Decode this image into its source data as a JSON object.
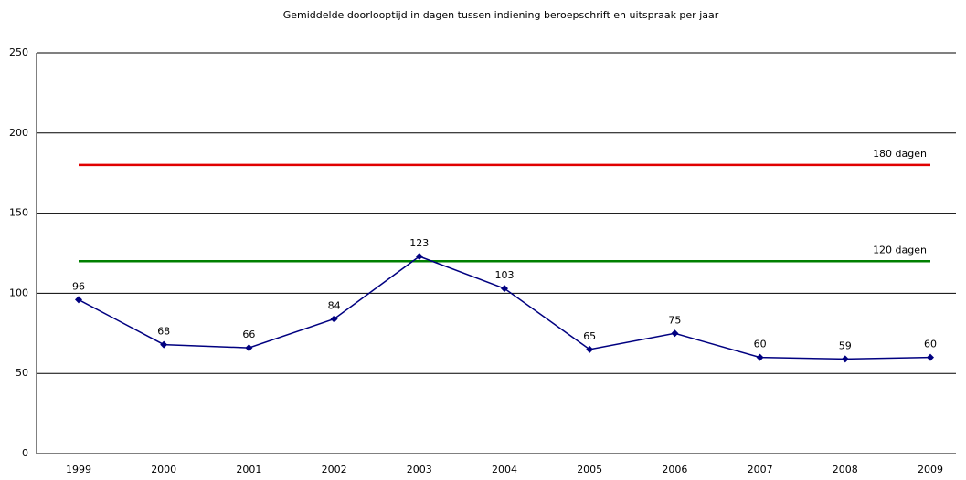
{
  "chart_data": {
    "type": "line",
    "title": "Gemiddelde doorlooptijd in dagen tussen indiening beroepschrift en uitspraak per jaar",
    "categories": [
      "1999",
      "2000",
      "2001",
      "2002",
      "2003",
      "2004",
      "2005",
      "2006",
      "2007",
      "2008",
      "2009"
    ],
    "series": [
      {
        "name": "180 dagen",
        "color": "#e00000",
        "values": [
          180,
          180,
          180,
          180,
          180,
          180,
          180,
          180,
          180,
          180,
          180
        ]
      },
      {
        "name": "120 dagen",
        "color": "#008000",
        "values": [
          120,
          120,
          120,
          120,
          120,
          120,
          120,
          120,
          120,
          120,
          120
        ]
      },
      {
        "color": "#000080",
        "values": [
          96,
          68,
          66,
          84,
          123,
          103,
          65,
          75,
          60,
          59,
          60
        ]
      }
    ],
    "ylim": [
      0,
      250
    ],
    "yticks": [
      0,
      50,
      100,
      150,
      200,
      250
    ],
    "grid": true
  }
}
